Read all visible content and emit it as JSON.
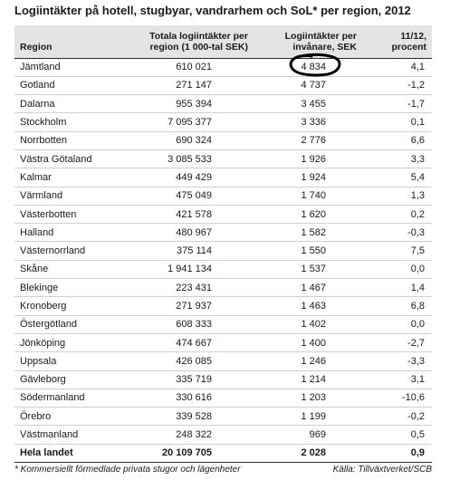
{
  "title": "Logiintäkter på hotell, stugbyar, vandrarhem och SoL* per region, 2012",
  "table": {
    "headers": {
      "region": "Region",
      "total": "Totala logiintäkter per region (1 000-tal SEK)",
      "per_capita": "Logiintäkter per invånare, SEK",
      "change": "11/12, procent"
    },
    "rows": [
      {
        "region": "Jämtland",
        "total": "610 021",
        "per_capita": "4 834",
        "change": "4,1"
      },
      {
        "region": "Gotland",
        "total": "271 147",
        "per_capita": "4 737",
        "change": "-1,2"
      },
      {
        "region": "Dalarna",
        "total": "955 394",
        "per_capita": "3 455",
        "change": "-1,7"
      },
      {
        "region": "Stockholm",
        "total": "7 095 377",
        "per_capita": "3 336",
        "change": "0,1"
      },
      {
        "region": "Norrbotten",
        "total": "690 324",
        "per_capita": "2 776",
        "change": "6,6"
      },
      {
        "region": "Västra Götaland",
        "total": "3 085 533",
        "per_capita": "1 926",
        "change": "3,3"
      },
      {
        "region": "Kalmar",
        "total": "449 429",
        "per_capita": "1 924",
        "change": "5,4"
      },
      {
        "region": "Värmland",
        "total": "475 049",
        "per_capita": "1 740",
        "change": "1,3"
      },
      {
        "region": "Västerbotten",
        "total": "421 578",
        "per_capita": "1 620",
        "change": "0,2"
      },
      {
        "region": "Halland",
        "total": "480 967",
        "per_capita": "1 582",
        "change": "-0,3"
      },
      {
        "region": "Västernorrland",
        "total": "375 114",
        "per_capita": "1 550",
        "change": "7,5"
      },
      {
        "region": "Skåne",
        "total": "1 941 134",
        "per_capita": "1 537",
        "change": "0,0"
      },
      {
        "region": "Blekinge",
        "total": "223 431",
        "per_capita": "1 467",
        "change": "1,4"
      },
      {
        "region": "Kronoberg",
        "total": "271 937",
        "per_capita": "1 463",
        "change": "6,8"
      },
      {
        "region": "Östergötland",
        "total": "608 333",
        "per_capita": "1 402",
        "change": "0,0"
      },
      {
        "region": "Jönköping",
        "total": "474 667",
        "per_capita": "1 400",
        "change": "-2,7"
      },
      {
        "region": "Uppsala",
        "total": "426 085",
        "per_capita": "1 246",
        "change": "-3,3"
      },
      {
        "region": "Gävleborg",
        "total": "335 719",
        "per_capita": "1 214",
        "change": "3,1"
      },
      {
        "region": "Södermanland",
        "total": "330 616",
        "per_capita": "1 203",
        "change": "-10,6"
      },
      {
        "region": "Örebro",
        "total": "339 528",
        "per_capita": "1 199",
        "change": "-0,2"
      },
      {
        "region": "Västmanland",
        "total": "248 322",
        "per_capita": "969",
        "change": "0,5"
      }
    ],
    "total_row": {
      "region": "Hela landet",
      "total": "20 109 705",
      "per_capita": "2 028",
      "change": "0,9"
    }
  },
  "footnote": "* Kommersiellt förmedlade privata stugor och lägenheter",
  "source": "Källa: Tillväxtverket/SCB",
  "annotation": {
    "type": "hand-drawn-circle",
    "color": "#000000"
  }
}
